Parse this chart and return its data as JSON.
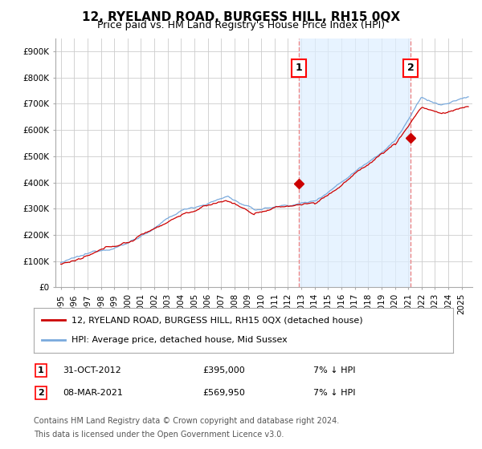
{
  "title": "12, RYELAND ROAD, BURGESS HILL, RH15 0QX",
  "subtitle": "Price paid vs. HM Land Registry's House Price Index (HPI)",
  "ylabel_ticks": [
    "£0",
    "£100K",
    "£200K",
    "£300K",
    "£400K",
    "£500K",
    "£600K",
    "£700K",
    "£800K",
    "£900K"
  ],
  "ylim": [
    0,
    950000
  ],
  "xlim_start": 1994.6,
  "xlim_end": 2025.8,
  "transaction1": {
    "date_num": 2012.83,
    "price": 395000,
    "label": "1",
    "date_str": "31-OCT-2012",
    "price_str": "£395,000",
    "hpi_str": "7% ↓ HPI"
  },
  "transaction2": {
    "date_num": 2021.18,
    "price": 569950,
    "label": "2",
    "date_str": "08-MAR-2021",
    "price_str": "£569,950",
    "hpi_str": "7% ↓ HPI"
  },
  "legend_line1": "12, RYELAND ROAD, BURGESS HILL, RH15 0QX (detached house)",
  "legend_line2": "HPI: Average price, detached house, Mid Sussex",
  "footer1": "Contains HM Land Registry data © Crown copyright and database right 2024.",
  "footer2": "This data is licensed under the Open Government Licence v3.0.",
  "line_color_red": "#cc0000",
  "line_color_blue": "#7aaadd",
  "shade_color": "#ddeeff",
  "vline_color": "#ee8888",
  "background_color": "#ffffff",
  "grid_color": "#cccccc",
  "title_fontsize": 11,
  "subtitle_fontsize": 9,
  "tick_label_fontsize": 7.5,
  "legend_fontsize": 8,
  "annotation_fontsize": 8,
  "footer_fontsize": 7
}
